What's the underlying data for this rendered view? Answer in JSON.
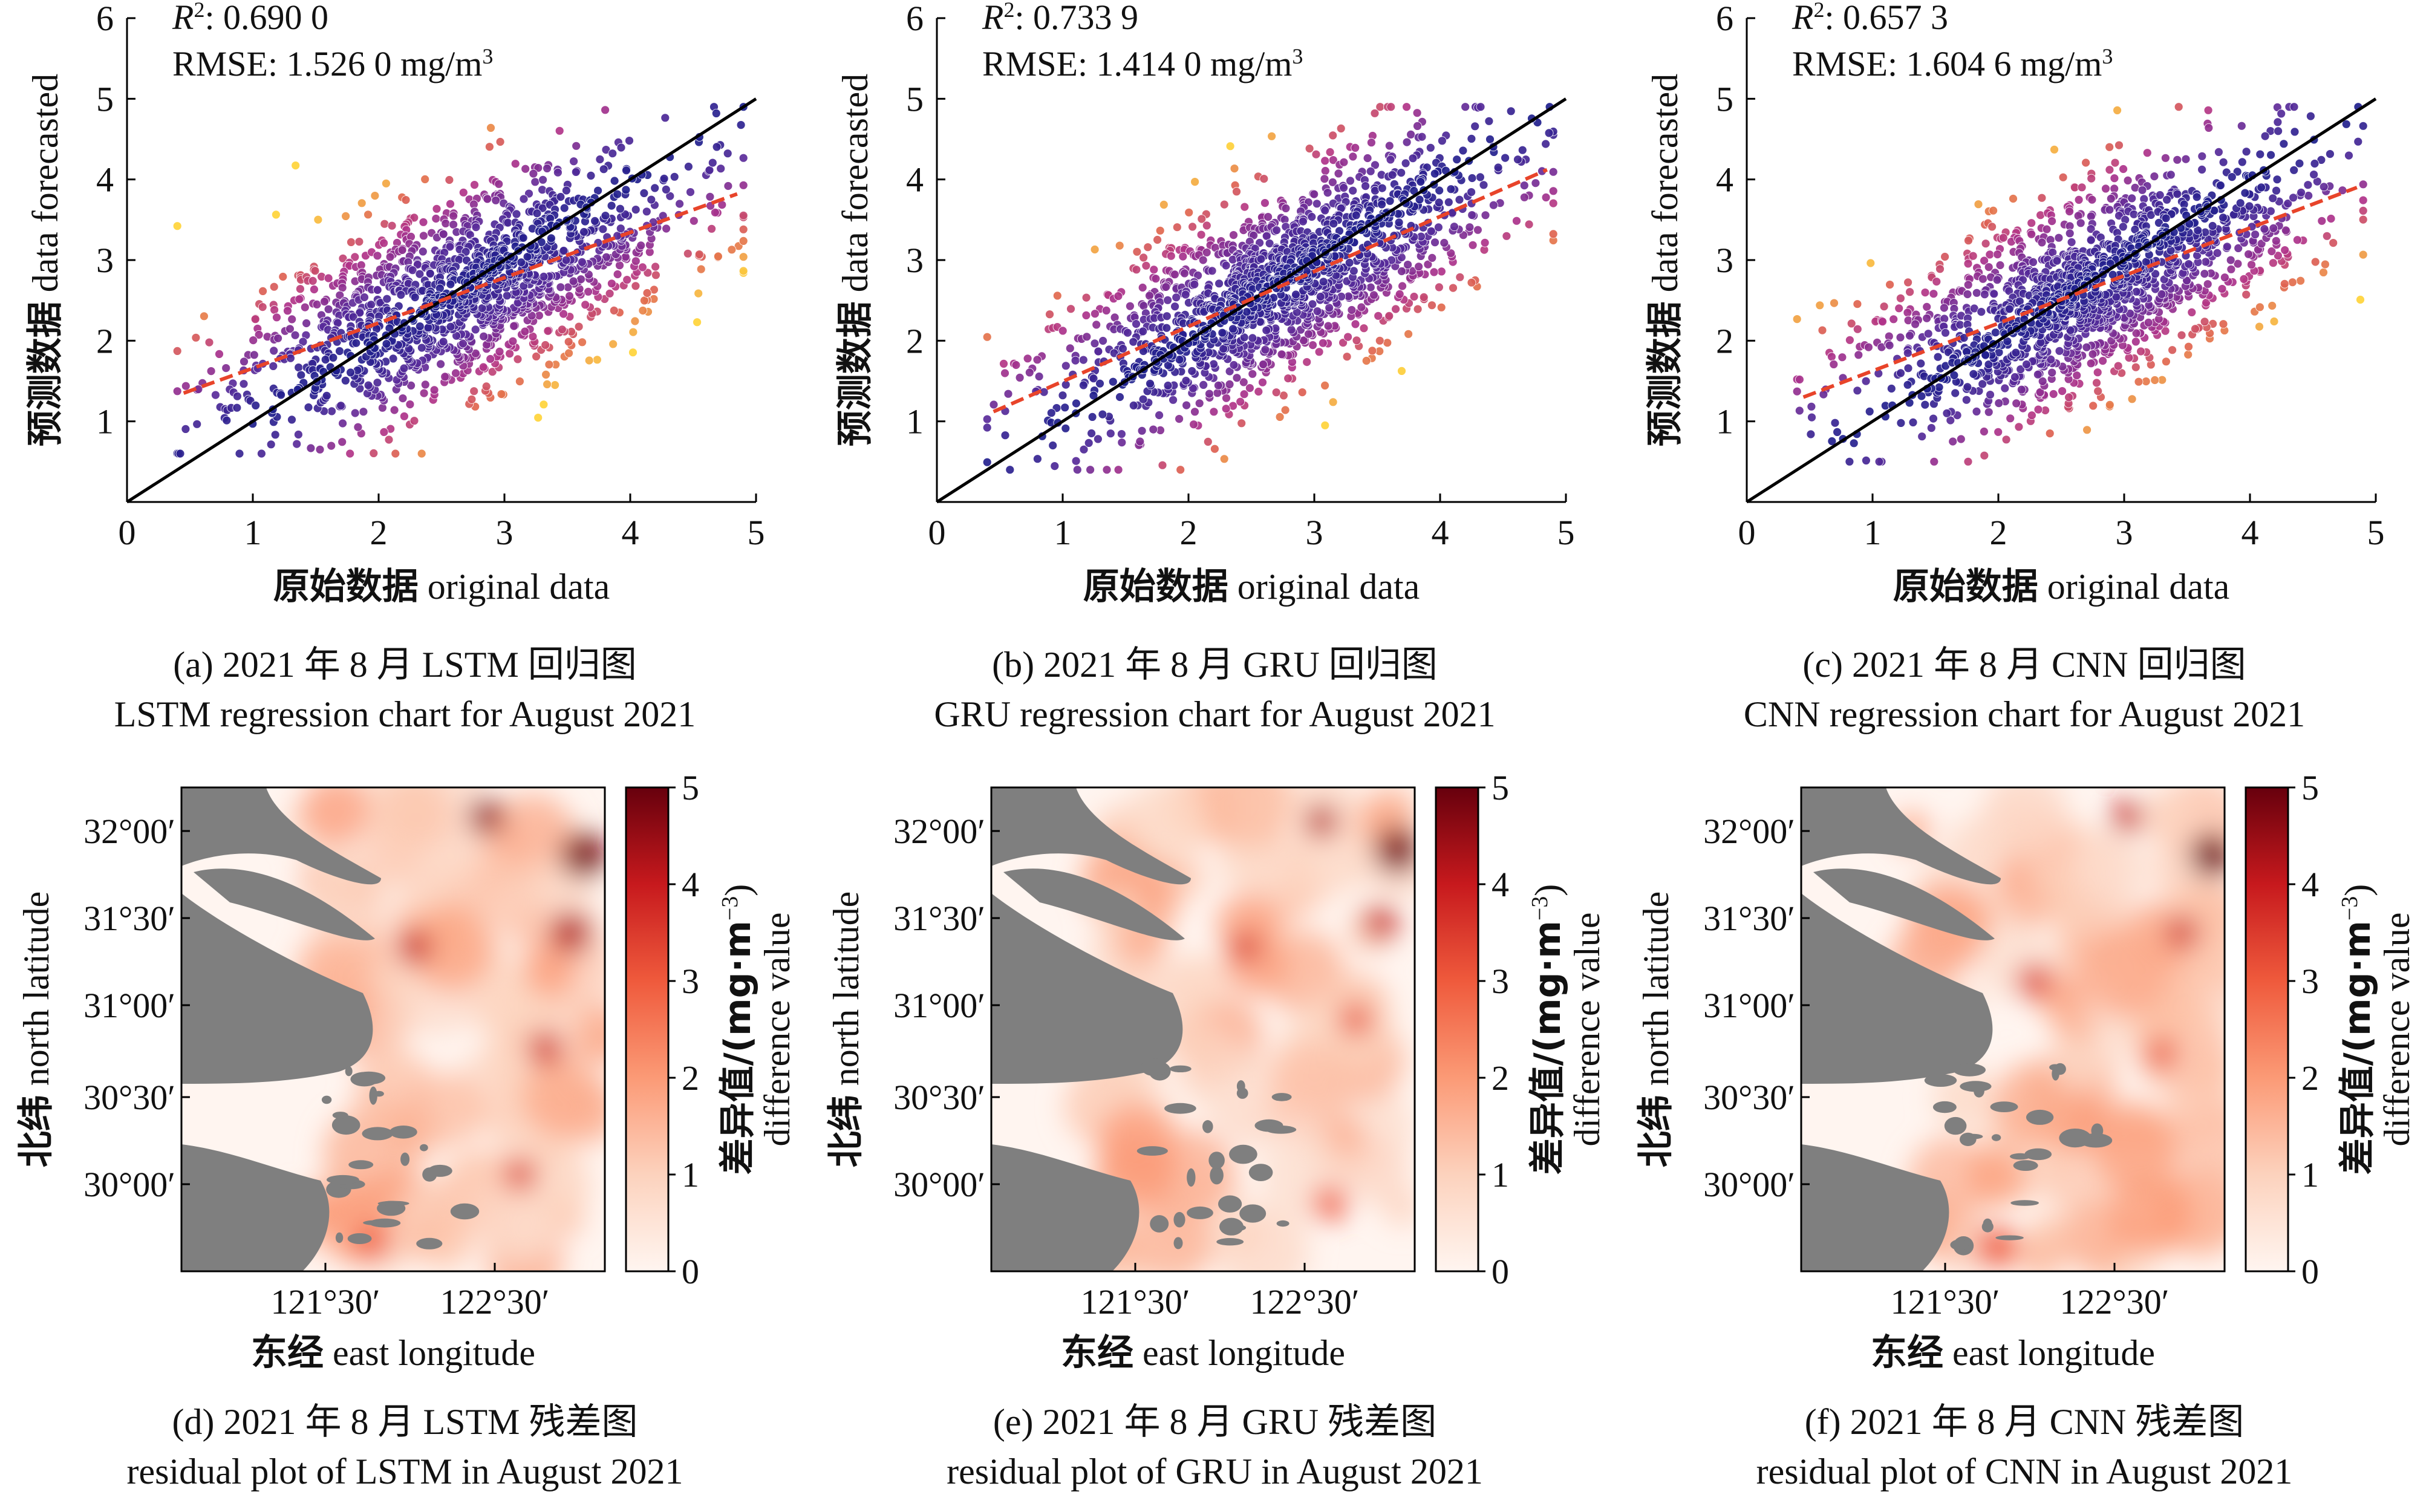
{
  "chart_data": [
    {
      "panel": "a",
      "type": "scatter",
      "stat_r2_label": "R",
      "stat_r2_sup": "2",
      "stat_r2_value": ": 0.690 0",
      "stat_rmse_text": "RMSE: 1.526 0 mg/m",
      "stat_rmse_sup": "3",
      "xlabel_cn": "原始数据",
      "xlabel_en": "original data",
      "ylabel_cn": "预测数据",
      "ylabel_en": "data forecasted",
      "xlim": [
        0,
        5
      ],
      "ylim": [
        0,
        6
      ],
      "xticks": [
        "0",
        "1",
        "2",
        "3",
        "4",
        "5"
      ],
      "yticks": [
        "1",
        "2",
        "3",
        "4",
        "5",
        "6"
      ],
      "identity_line": {
        "x": [
          0,
          5
        ],
        "y": [
          0,
          5
        ]
      },
      "fit_line": {
        "x": [
          0.45,
          4.85
        ],
        "y": [
          1.35,
          3.82
        ]
      },
      "point_cloud": {
        "x_range": [
          0.4,
          4.9
        ],
        "y_range": [
          0.6,
          4.9
        ],
        "center": [
          2.7,
          2.7
        ],
        "count_approx": 1500
      },
      "caption_cn": "(a) 2021 年 8 月 LSTM 回归图",
      "caption_en": "LSTM regression chart for August 2021"
    },
    {
      "panel": "b",
      "type": "scatter",
      "stat_r2_label": "R",
      "stat_r2_sup": "2",
      "stat_r2_value": ": 0.733 9",
      "stat_rmse_text": "RMSE: 1.414 0 mg/m",
      "stat_rmse_sup": "3",
      "xlabel_cn": "原始数据",
      "xlabel_en": "original data",
      "ylabel_cn": "预测数据",
      "ylabel_en": "data forecasted",
      "xlim": [
        0,
        5
      ],
      "ylim": [
        0,
        6
      ],
      "xticks": [
        "0",
        "1",
        "2",
        "3",
        "4",
        "5"
      ],
      "yticks": [
        "1",
        "2",
        "3",
        "4",
        "5",
        "6"
      ],
      "identity_line": {
        "x": [
          0,
          5
        ],
        "y": [
          0,
          5
        ]
      },
      "fit_line": {
        "x": [
          0.45,
          4.85
        ],
        "y": [
          1.12,
          4.12
        ]
      },
      "point_cloud": {
        "x_range": [
          0.4,
          4.9
        ],
        "y_range": [
          0.4,
          4.9
        ],
        "center": [
          2.7,
          2.7
        ],
        "count_approx": 1500
      },
      "caption_cn": "(b) 2021 年 8 月 GRU 回归图",
      "caption_en": "GRU regression chart for August 2021"
    },
    {
      "panel": "c",
      "type": "scatter",
      "stat_r2_label": "R",
      "stat_r2_sup": "2",
      "stat_r2_value": ": 0.657 3",
      "stat_rmse_text": "RMSE: 1.604 6 mg/m",
      "stat_rmse_sup": "3",
      "xlabel_cn": "原始数据",
      "xlabel_en": "original data",
      "ylabel_cn": "预测数据",
      "ylabel_en": "data forecasted",
      "xlim": [
        0,
        5
      ],
      "ylim": [
        0,
        6
      ],
      "xticks": [
        "0",
        "1",
        "2",
        "3",
        "4",
        "5"
      ],
      "yticks": [
        "1",
        "2",
        "3",
        "4",
        "5",
        "6"
      ],
      "identity_line": {
        "x": [
          0,
          5
        ],
        "y": [
          0,
          5
        ]
      },
      "fit_line": {
        "x": [
          0.45,
          4.85
        ],
        "y": [
          1.3,
          3.9
        ]
      },
      "point_cloud": {
        "x_range": [
          0.4,
          4.9
        ],
        "y_range": [
          0.5,
          4.9
        ],
        "center": [
          2.7,
          2.6
        ],
        "count_approx": 1500
      },
      "caption_cn": "(c) 2021 年 8 月 CNN 回归图",
      "caption_en": "CNN regression chart for August 2021"
    },
    {
      "panel": "d",
      "type": "heatmap",
      "xlabel_cn": "东经",
      "xlabel_en": "east longitude",
      "ylabel_cn": "北纬",
      "ylabel_en": "north latitude",
      "xticks": [
        "121°30′",
        "122°30′"
      ],
      "yticks": [
        "32°00′",
        "31°30′",
        "31°00′",
        "30°30′",
        "30°00′"
      ],
      "colorbar_label_cn": "差异值/(mg·m",
      "colorbar_label_sup": "−3",
      "colorbar_label_close": ")",
      "colorbar_label_en": "difference value",
      "colorbar_range": [
        0,
        5
      ],
      "colorbar_ticks": [
        "0",
        "1",
        "2",
        "3",
        "4",
        "5"
      ],
      "land_color": "#7f7f7f",
      "hotspots_approx_value": [
        4.8,
        4.5,
        4.2,
        4.0,
        3.8,
        3.5,
        3.0
      ],
      "caption_cn": "(d) 2021 年 8 月 LSTM 残差图",
      "caption_en": "residual plot of LSTM in August 2021"
    },
    {
      "panel": "e",
      "type": "heatmap",
      "xlabel_cn": "东经",
      "xlabel_en": "east longitude",
      "ylabel_cn": "北纬",
      "ylabel_en": "north latitude",
      "xticks": [
        "121°30′",
        "122°30′"
      ],
      "yticks": [
        "32°00′",
        "31°30′",
        "31°00′",
        "30°30′",
        "30°00′"
      ],
      "colorbar_label_cn": "差异值/(mg·m",
      "colorbar_label_sup": "−3",
      "colorbar_label_close": ")",
      "colorbar_label_en": "difference value",
      "colorbar_range": [
        0,
        5
      ],
      "colorbar_ticks": [
        "0",
        "1",
        "2",
        "3",
        "4",
        "5"
      ],
      "land_color": "#7f7f7f",
      "hotspots_approx_value": [
        4.8,
        4.2,
        4.0,
        3.6,
        3.2,
        3.0
      ],
      "caption_cn": "(e) 2021 年 8 月 GRU 残差图",
      "caption_en": "residual plot of GRU in August 2021"
    },
    {
      "panel": "f",
      "type": "heatmap",
      "xlabel_cn": "东经",
      "xlabel_en": "east longitude",
      "ylabel_cn": "北纬",
      "ylabel_en": "north latitude",
      "xticks": [
        "121°30′",
        "122°30′"
      ],
      "yticks": [
        "32°00′",
        "31°30′",
        "31°00′",
        "30°30′",
        "30°00′"
      ],
      "colorbar_label_cn": "差异值/(mg·m",
      "colorbar_label_sup": "−3",
      "colorbar_label_close": ")",
      "colorbar_label_en": "difference value",
      "colorbar_range": [
        0,
        5
      ],
      "colorbar_ticks": [
        "0",
        "1",
        "2",
        "3",
        "4",
        "5"
      ],
      "land_color": "#7f7f7f",
      "hotspots_approx_value": [
        4.9,
        4.0,
        3.8,
        3.5,
        3.2,
        3.0
      ],
      "caption_cn": "(f) 2021 年 8 月 CNN 残差图",
      "caption_en": "residual plot of CNN in August 2021"
    }
  ],
  "colors": {
    "scatter_low": "#1b1f8c",
    "scatter_mid": "#b0338a",
    "scatter_high": "#ffd43a",
    "identity_line": "#000000",
    "fit_line": "#e8442a",
    "land": "#7f7f7f",
    "heat_low": "#fff5f0",
    "heat_high": "#67000d"
  }
}
